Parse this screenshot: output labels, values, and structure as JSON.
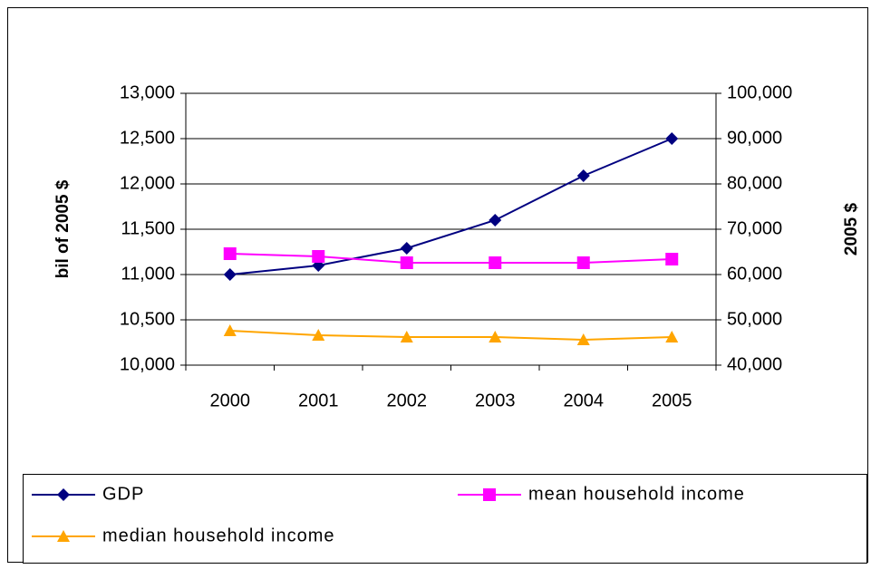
{
  "chart_data": {
    "type": "line",
    "categories": [
      "2000",
      "2001",
      "2002",
      "2003",
      "2004",
      "2005"
    ],
    "y_label": "bil of 2005 $",
    "y2_label": "2005 $",
    "ylim": [
      10000,
      13000
    ],
    "yticks": [
      {
        "value": 10000,
        "label": "10,000"
      },
      {
        "value": 10500,
        "label": "10,500"
      },
      {
        "value": 11000,
        "label": "11,000"
      },
      {
        "value": 11500,
        "label": "11,500"
      },
      {
        "value": 12000,
        "label": "12,000"
      },
      {
        "value": 12500,
        "label": "12,500"
      },
      {
        "value": 13000,
        "label": "13,000"
      }
    ],
    "y2lim": [
      40000,
      100000
    ],
    "y2ticks": [
      {
        "value": 40000,
        "label": "40,000"
      },
      {
        "value": 50000,
        "label": "50,000"
      },
      {
        "value": 60000,
        "label": "60,000"
      },
      {
        "value": 70000,
        "label": "70,000"
      },
      {
        "value": 80000,
        "label": "80,000"
      },
      {
        "value": 90000,
        "label": "90,000"
      },
      {
        "value": 100000,
        "label": "100,000"
      }
    ],
    "grid": true,
    "series": [
      {
        "name": "GDP",
        "color": "#000080",
        "marker": "diamond",
        "axis": "y",
        "values": [
          11000,
          11100,
          11290,
          11600,
          12090,
          12500
        ]
      },
      {
        "name": "mean household income",
        "color": "#ff00ff",
        "marker": "square",
        "axis": "y2",
        "values": [
          64600,
          64000,
          62600,
          62600,
          62600,
          63400
        ]
      },
      {
        "name": "median household income",
        "color": "#ffa500",
        "marker": "triangle",
        "axis": "y2",
        "values": [
          47600,
          46600,
          46200,
          46200,
          45600,
          46200
        ]
      }
    ]
  }
}
